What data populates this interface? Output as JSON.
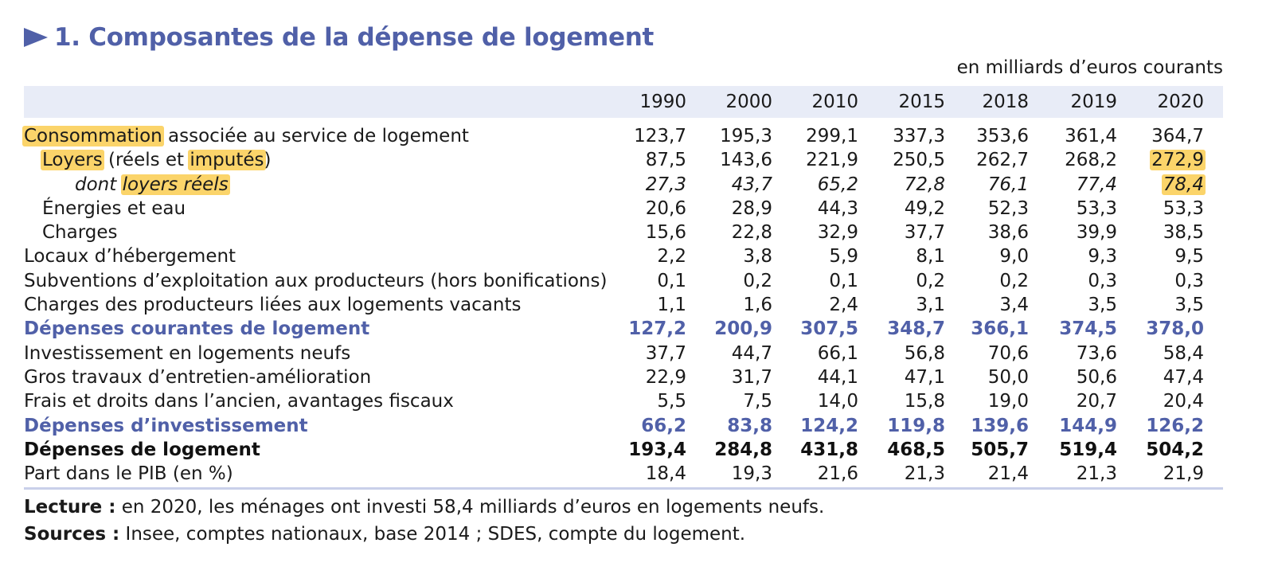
{
  "title": "1. Composantes de la dépense de logement",
  "unit": "en milliards d’euros courants",
  "columns": [
    "1990",
    "2000",
    "2010",
    "2015",
    "2018",
    "2019",
    "2020"
  ],
  "rows": [
    {
      "style": "normal",
      "indent": 0,
      "label_parts": [
        {
          "text": "Consommation",
          "hl": true
        },
        {
          "text": " associée au service de logement",
          "hl": false
        }
      ],
      "values": [
        "123,7",
        "195,3",
        "299,1",
        "337,3",
        "353,6",
        "361,4",
        "364,7"
      ],
      "hl_values": []
    },
    {
      "style": "normal",
      "indent": 1,
      "label_parts": [
        {
          "text": "Loyers",
          "hl": true
        },
        {
          "text": " (réels et ",
          "hl": false
        },
        {
          "text": "imputés",
          "hl": true
        },
        {
          "text": ")",
          "hl": false
        }
      ],
      "values": [
        "87,5",
        "143,6",
        "221,9",
        "250,5",
        "262,7",
        "268,2",
        "272,9"
      ],
      "hl_values": [
        6
      ]
    },
    {
      "style": "normal",
      "indent": 2,
      "label_parts": [
        {
          "text": "dont ",
          "hl": false
        },
        {
          "text": "loyers réels",
          "hl": true
        }
      ],
      "values": [
        "27,3",
        "43,7",
        "65,2",
        "72,8",
        "76,1",
        "77,4",
        "78,4"
      ],
      "hl_values": [
        6
      ]
    },
    {
      "style": "normal",
      "indent": 1,
      "label_parts": [
        {
          "text": "Énergies et eau",
          "hl": false
        }
      ],
      "values": [
        "20,6",
        "28,9",
        "44,3",
        "49,2",
        "52,3",
        "53,3",
        "53,3"
      ],
      "hl_values": []
    },
    {
      "style": "normal",
      "indent": 1,
      "label_parts": [
        {
          "text": "Charges",
          "hl": false
        }
      ],
      "values": [
        "15,6",
        "22,8",
        "32,9",
        "37,7",
        "38,6",
        "39,9",
        "38,5"
      ],
      "hl_values": []
    },
    {
      "style": "normal",
      "indent": 0,
      "label_parts": [
        {
          "text": "Locaux d’hébergement",
          "hl": false
        }
      ],
      "values": [
        "2,2",
        "3,8",
        "5,9",
        "8,1",
        "9,0",
        "9,3",
        "9,5"
      ],
      "hl_values": []
    },
    {
      "style": "normal",
      "indent": 0,
      "label_parts": [
        {
          "text": "Subventions d’exploitation aux producteurs (hors bonifications)",
          "hl": false
        }
      ],
      "values": [
        "0,1",
        "0,2",
        "0,1",
        "0,2",
        "0,2",
        "0,3",
        "0,3"
      ],
      "hl_values": []
    },
    {
      "style": "normal",
      "indent": 0,
      "label_parts": [
        {
          "text": "Charges des producteurs liées aux logements vacants",
          "hl": false
        }
      ],
      "values": [
        "1,1",
        "1,6",
        "2,4",
        "3,1",
        "3,4",
        "3,5",
        "3,5"
      ],
      "hl_values": []
    },
    {
      "style": "subtotal",
      "indent": 0,
      "label_parts": [
        {
          "text": "Dépenses courantes de logement",
          "hl": false
        }
      ],
      "values": [
        "127,2",
        "200,9",
        "307,5",
        "348,7",
        "366,1",
        "374,5",
        "378,0"
      ],
      "hl_values": []
    },
    {
      "style": "normal",
      "indent": 0,
      "label_parts": [
        {
          "text": "Investissement en logements neufs",
          "hl": false
        }
      ],
      "values": [
        "37,7",
        "44,7",
        "66,1",
        "56,8",
        "70,6",
        "73,6",
        "58,4"
      ],
      "hl_values": []
    },
    {
      "style": "normal",
      "indent": 0,
      "label_parts": [
        {
          "text": "Gros travaux d’entretien-amélioration",
          "hl": false
        }
      ],
      "values": [
        "22,9",
        "31,7",
        "44,1",
        "47,1",
        "50,0",
        "50,6",
        "47,4"
      ],
      "hl_values": []
    },
    {
      "style": "normal",
      "indent": 0,
      "label_parts": [
        {
          "text": "Frais et droits dans l’ancien, avantages fiscaux",
          "hl": false
        }
      ],
      "values": [
        "5,5",
        "7,5",
        "14,0",
        "15,8",
        "19,0",
        "20,7",
        "20,4"
      ],
      "hl_values": []
    },
    {
      "style": "subtotal",
      "indent": 0,
      "label_parts": [
        {
          "text": "Dépenses d’investissement",
          "hl": false
        }
      ],
      "values": [
        "66,2",
        "83,8",
        "124,2",
        "119,8",
        "139,6",
        "144,9",
        "126,2"
      ],
      "hl_values": []
    },
    {
      "style": "total",
      "indent": 0,
      "label_parts": [
        {
          "text": "Dépenses de logement",
          "hl": false
        }
      ],
      "values": [
        "193,4",
        "284,8",
        "431,8",
        "468,5",
        "505,7",
        "519,4",
        "504,2"
      ],
      "hl_values": []
    },
    {
      "style": "normal",
      "indent": 0,
      "label_parts": [
        {
          "text": "Part dans le PIB (en %)",
          "hl": false
        }
      ],
      "values": [
        "18,4",
        "19,3",
        "21,6",
        "21,3",
        "21,4",
        "21,3",
        "21,9"
      ],
      "hl_values": []
    }
  ],
  "notes": {
    "reading_label": "Lecture :",
    "reading_text": " en 2020, les ménages ont investi 58,4 milliards d’euros en logements neufs.",
    "sources_label": "Sources :",
    "sources_text": " Insee, comptes nationaux, base 2014 ; SDES, compte du logement."
  },
  "colors": {
    "title": "#5060a8",
    "header_bg": "#e8ecf7",
    "highlight": "#fbd46a"
  }
}
